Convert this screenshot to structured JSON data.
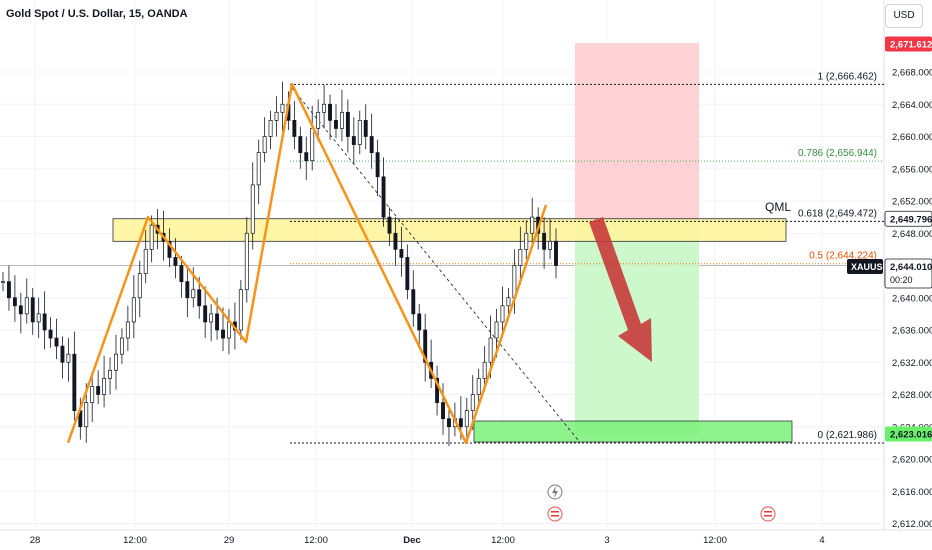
{
  "header": {
    "title": "Gold Spot / U.S. Dollar, 15, OANDA",
    "currency": "USD"
  },
  "colors": {
    "accent_orange": "#f7931a",
    "candle": "#131722",
    "stop_zone": "#ffcdd2",
    "target_zone": "#c8f7c5",
    "qml_zone": "#fff59d",
    "arrow": "#c8383a",
    "green_label": "#4caf50",
    "red_label": "#f23645"
  },
  "chart_data": {
    "type": "candlestick",
    "y_axis": {
      "min": 2612,
      "max": 2674,
      "ticks": [
        "2,668.000",
        "2,664.000",
        "2,660.000",
        "2,656.000",
        "2,652.000",
        "2,648.000",
        "2,644.000",
        "2,640.000",
        "2,636.000",
        "2,632.000",
        "2,628.000",
        "2,624.000",
        "2,620.000",
        "2,616.000",
        "2,612.000"
      ]
    },
    "x_axis": {
      "ticks": [
        "28",
        "12:00",
        "29",
        "12:00",
        "Dec",
        "12:00",
        "3",
        "12:00",
        "4"
      ]
    },
    "price_labels": {
      "top": "2,671.612",
      "current_level": "2,649.796",
      "symbol": "XAUUSD",
      "last": "2,644.010",
      "countdown": "00:20",
      "bottom": "2,623.016"
    },
    "fib_levels": [
      {
        "label": "1 (2,666.462)",
        "price": 2666.462
      },
      {
        "label": "0.786 (2,656.944)",
        "price": 2656.944
      },
      {
        "label": "0.618 (2,649.472)",
        "price": 2649.472
      },
      {
        "label": "0.5 (2,644.224)",
        "price": 2644.224
      },
      {
        "label": "0 (2,621.986)",
        "price": 2621.986
      }
    ],
    "annotation": "QML",
    "zigzag": [
      2622.0,
      2650.0,
      2634.5,
      2666.5,
      2622.0,
      2651.5
    ],
    "qml_zone": [
      2647.0,
      2649.8
    ],
    "stop_zone": [
      2649.8,
      2671.6
    ],
    "target_zone": [
      2623.0,
      2649.8
    ],
    "support_zone": [
      2623.0,
      2624.4
    ],
    "closes": [
      2642,
      2640,
      2639,
      2638,
      2640,
      2637,
      2638,
      2636,
      2635,
      2634,
      2632,
      2633,
      2626,
      2624,
      2627,
      2629,
      2628,
      2630,
      2631,
      2633,
      2635,
      2637,
      2640,
      2643,
      2646,
      2649,
      2648,
      2647,
      2645,
      2644,
      2642,
      2640,
      2641,
      2639,
      2637,
      2638,
      2636,
      2635,
      2637,
      2636,
      2641,
      2648,
      2654,
      2658,
      2660,
      2662,
      2663,
      2664,
      2662,
      2660,
      2658,
      2657,
      2661,
      2663,
      2664,
      2662,
      2661,
      2663,
      2660,
      2659,
      2662,
      2660,
      2658,
      2655,
      2650,
      2648,
      2646,
      2645,
      2641,
      2638,
      2636,
      2632,
      2630,
      2627,
      2625,
      2624,
      2625,
      2624,
      2626,
      2628,
      2630,
      2632,
      2635,
      2637,
      2639,
      2640,
      2644,
      2646,
      2648,
      2650,
      2648,
      2646,
      2647,
      2644
    ]
  }
}
